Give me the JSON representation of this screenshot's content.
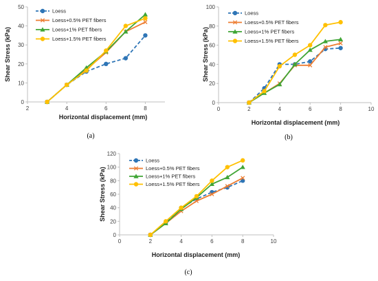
{
  "colors": {
    "Loess": "#2e75b6",
    "Loess+0.5% PET fibers": "#ed7d31",
    "Loess+1% PET fibers": "#3fa535",
    "Loess+1.5% PET fibers": "#ffc000"
  },
  "chart_data": [
    {
      "type": "line",
      "panel_label": "(a)",
      "xlabel": "Horizontal displacement (mm)",
      "ylabel": "Shear Stress (kPa)",
      "xlim": [
        2,
        9
      ],
      "ylim": [
        0,
        50
      ],
      "xticks": [
        2,
        4,
        6,
        8
      ],
      "yticks": [
        0,
        10,
        20,
        30,
        40,
        50
      ],
      "legend_position": "top-left",
      "series": [
        {
          "name": "Loess",
          "marker": "circle",
          "dash": true,
          "x": [
            3,
            4,
            5,
            6,
            7,
            8
          ],
          "y": [
            0,
            9,
            16,
            20,
            23,
            35
          ]
        },
        {
          "name": "Loess+0.5% PET fibers",
          "marker": "x",
          "dash": false,
          "x": [
            3,
            4,
            5,
            6,
            7,
            8
          ],
          "y": [
            0,
            9,
            17,
            26,
            37,
            42
          ]
        },
        {
          "name": "Loess+1% PET fibers",
          "marker": "triangle",
          "dash": false,
          "x": [
            3,
            4,
            5,
            6,
            7,
            8
          ],
          "y": [
            0,
            9,
            18,
            26.5,
            37,
            46
          ]
        },
        {
          "name": "Loess+1.5% PET fibers",
          "marker": "circle",
          "dash": false,
          "x": [
            3,
            4,
            5,
            6,
            7,
            8
          ],
          "y": [
            0,
            9,
            16.5,
            27,
            40,
            44
          ]
        }
      ]
    },
    {
      "type": "line",
      "panel_label": "(b)",
      "xlabel": "Horizontal displacement (mm)",
      "ylabel": "Shear Stress (kPa)",
      "xlim": [
        0,
        10
      ],
      "ylim": [
        0,
        100
      ],
      "xticks": [
        0,
        2,
        4,
        6,
        8,
        10
      ],
      "yticks": [
        0,
        20,
        40,
        60,
        80,
        100
      ],
      "legend_position": "top-left",
      "series": [
        {
          "name": "Loess",
          "marker": "circle",
          "dash": true,
          "x": [
            2,
            3,
            4,
            5,
            6,
            7,
            8
          ],
          "y": [
            0,
            15,
            40,
            40,
            43,
            56,
            57
          ]
        },
        {
          "name": "Loess+0.5% PET fibers",
          "marker": "x",
          "dash": false,
          "x": [
            2,
            3,
            4,
            5,
            6,
            7,
            8
          ],
          "y": [
            0,
            10,
            20,
            39,
            39,
            58,
            62
          ]
        },
        {
          "name": "Loess+1% PET fibers",
          "marker": "triangle",
          "dash": false,
          "x": [
            2,
            3,
            4,
            5,
            6,
            7,
            8
          ],
          "y": [
            0,
            10,
            19,
            40,
            55,
            64,
            66
          ]
        },
        {
          "name": "Loess+1.5% PET fibers",
          "marker": "circle",
          "dash": false,
          "x": [
            2,
            3,
            4,
            5,
            6,
            7,
            8
          ],
          "y": [
            0,
            12,
            38,
            50,
            60,
            81,
            84
          ]
        }
      ]
    },
    {
      "type": "line",
      "panel_label": "(c)",
      "xlabel": "Horizontal displacement (mm)",
      "ylabel": "Shear Stress (kPa)",
      "xlim": [
        0,
        10
      ],
      "ylim": [
        0,
        120
      ],
      "xticks": [
        0,
        2,
        4,
        6,
        8,
        10
      ],
      "yticks": [
        0,
        20,
        40,
        60,
        80,
        100,
        120
      ],
      "legend_position": "top-left",
      "series": [
        {
          "name": "Loess",
          "marker": "circle",
          "dash": true,
          "x": [
            2,
            3,
            4,
            5,
            6,
            7,
            8
          ],
          "y": [
            0,
            18,
            40,
            53,
            63,
            70,
            80
          ]
        },
        {
          "name": "Loess+0.5% PET fibers",
          "marker": "x",
          "dash": false,
          "x": [
            2,
            3,
            4,
            5,
            6,
            7,
            8
          ],
          "y": [
            0,
            17,
            35,
            50,
            60,
            72,
            84
          ]
        },
        {
          "name": "Loess+1% PET fibers",
          "marker": "triangle",
          "dash": false,
          "x": [
            2,
            3,
            4,
            5,
            6,
            7,
            8
          ],
          "y": [
            0,
            17,
            38,
            55,
            75,
            85,
            100
          ]
        },
        {
          "name": "Loess+1.5% PET fibers",
          "marker": "circle",
          "dash": false,
          "x": [
            2,
            3,
            4,
            5,
            6,
            7,
            8
          ],
          "y": [
            0,
            20,
            40,
            57,
            80,
            100,
            110
          ]
        }
      ]
    }
  ]
}
